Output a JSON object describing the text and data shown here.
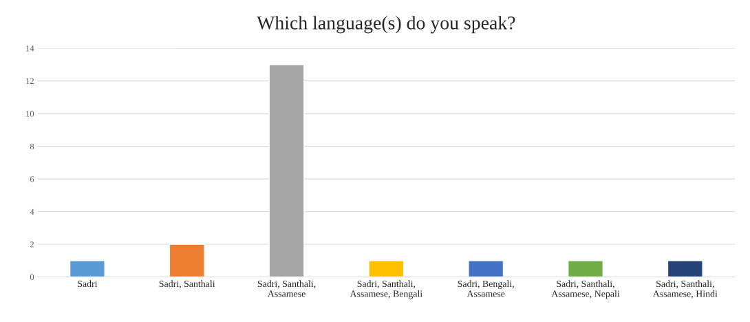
{
  "chart_data": {
    "type": "bar",
    "title": "Which language(s) do you speak?",
    "categories": [
      "Sadri",
      "Sadri, Santhali",
      "Sadri, Santhali,\nAssamese",
      "Sadri, Santhali,\nAssamese, Bengali",
      "Sadri, Bengali,\nAssamese",
      "Sadri, Santhali,\nAssamese, Nepali",
      "Sadri, Santhali,\nAssamese, Hindi"
    ],
    "values": [
      1,
      2,
      13,
      1,
      1,
      1,
      1
    ],
    "colors": [
      "#5b9bd5",
      "#ed7d31",
      "#a5a5a5",
      "#ffc000",
      "#4472c4",
      "#70ad47",
      "#264478"
    ],
    "ylim": [
      0,
      14
    ],
    "yticks": [
      0,
      2,
      4,
      6,
      8,
      10,
      12,
      14
    ],
    "grid": "y"
  }
}
